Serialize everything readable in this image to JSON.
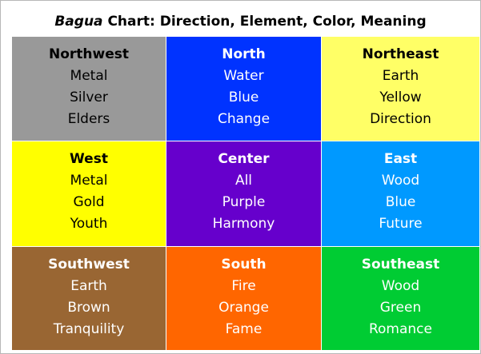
{
  "title": {
    "italic": "Bagua",
    "rest": " Chart: Direction, Element, Color, Meaning"
  },
  "cells": [
    {
      "direction": "Northwest",
      "element": "Metal",
      "color": "Silver",
      "meaning": "Elders",
      "bg": "#999999",
      "text_color": "#000000"
    },
    {
      "direction": "North",
      "element": "Water",
      "color": "Blue",
      "meaning": "Change",
      "bg": "#0033ff",
      "text_color": "#ffffff"
    },
    {
      "direction": "Northeast",
      "element": "Earth",
      "color": "Yellow",
      "meaning": "Direction",
      "bg": "#ffff66",
      "text_color": "#000000"
    },
    {
      "direction": "West",
      "element": "Metal",
      "color": "Gold",
      "meaning": "Youth",
      "bg": "#ffff00",
      "text_color": "#000000"
    },
    {
      "direction": "Center",
      "element": "All",
      "color": "Purple",
      "meaning": "Harmony",
      "bg": "#6600cc",
      "text_color": "#ffffff"
    },
    {
      "direction": "East",
      "element": "Wood",
      "color": "Blue",
      "meaning": "Future",
      "bg": "#0099ff",
      "text_color": "#ffffff"
    },
    {
      "direction": "Southwest",
      "element": "Earth",
      "color": "Brown",
      "meaning": "Tranquility",
      "bg": "#996633",
      "text_color": "#ffffff"
    },
    {
      "direction": "South",
      "element": "Fire",
      "color": "Orange",
      "meaning": "Fame",
      "bg": "#ff6600",
      "text_color": "#ffffff"
    },
    {
      "direction": "Southeast",
      "element": "Wood",
      "color": "Green",
      "meaning": "Romance",
      "bg": "#00cc33",
      "text_color": "#ffffff"
    }
  ]
}
